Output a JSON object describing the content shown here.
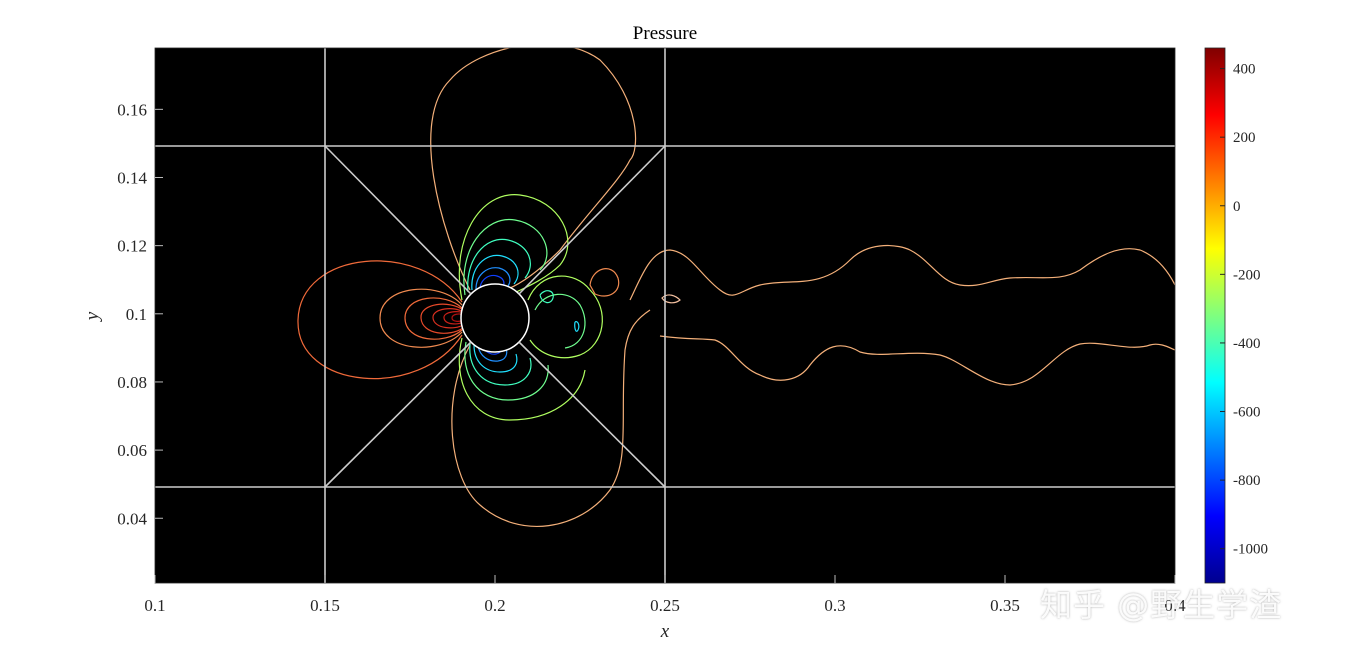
{
  "chart_data": {
    "type": "contour",
    "title": "Pressure",
    "xlabel": "x",
    "ylabel": "y",
    "xlim": [
      0.1,
      0.4
    ],
    "ylim": [
      0.021,
      0.178
    ],
    "xticks": [
      "0.1",
      "0.15",
      "0.2",
      "0.25",
      "0.3",
      "0.35",
      "0.4"
    ],
    "yticks": [
      "0.04",
      "0.06",
      "0.08",
      "0.1",
      "0.12",
      "0.14",
      "0.16"
    ],
    "background": "#000000",
    "colormap": "jet",
    "colorbar": {
      "range": [
        -1100,
        460
      ],
      "ticks": [
        "400",
        "200",
        "0",
        "-200",
        "-400",
        "-600",
        "-800",
        "-1000"
      ]
    },
    "cylinder": {
      "center": [
        0.2,
        0.1
      ],
      "radius": 0.01
    },
    "mesh_lines": {
      "color": "#cccccc",
      "vertical_x": [
        0.15,
        0.25
      ],
      "horizontal_y": [
        0.05,
        0.15
      ],
      "diagonals": [
        [
          [
            0.15,
            0.15
          ],
          [
            0.25,
            0.05
          ]
        ],
        [
          [
            0.15,
            0.05
          ],
          [
            0.25,
            0.15
          ]
        ]
      ]
    }
  },
  "watermark": {
    "text": "知乎 @野生学渣"
  }
}
